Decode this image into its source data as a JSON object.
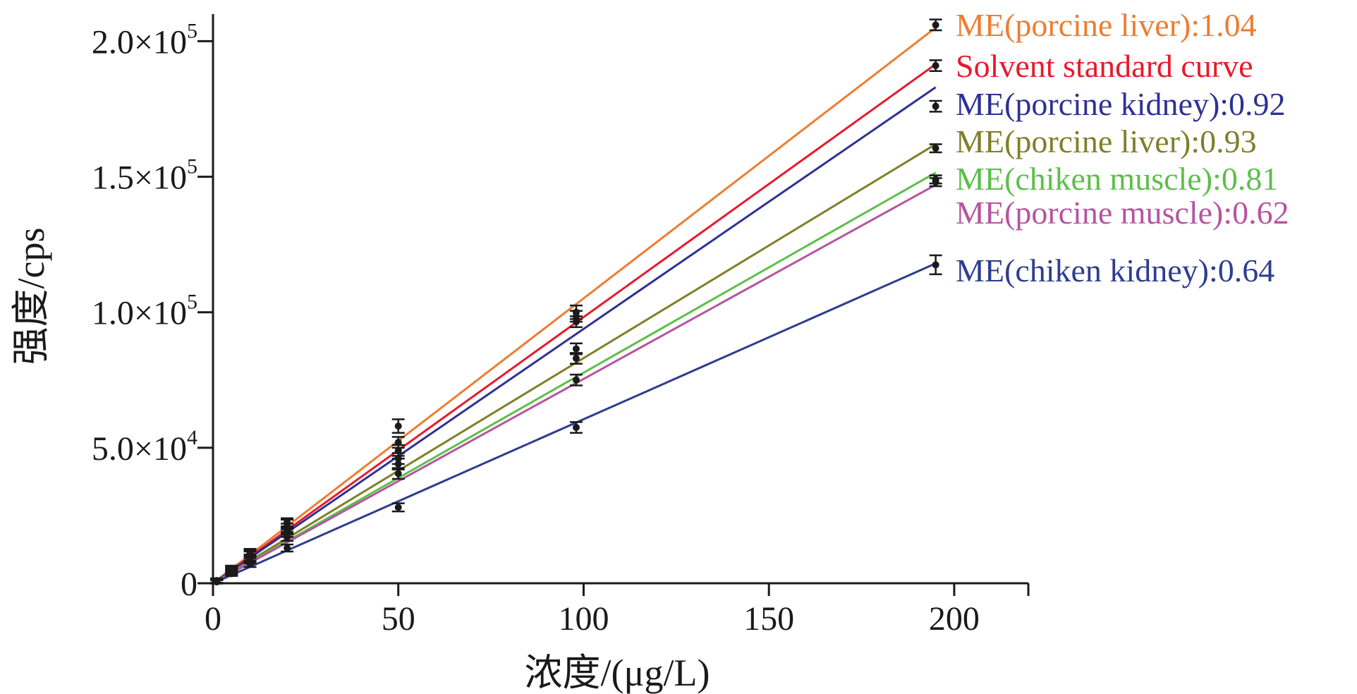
{
  "chart_data": {
    "type": "line",
    "xlabel": "浓度/(μg/L)",
    "ylabel": "强度/cps",
    "xlim": [
      0,
      220
    ],
    "ylim": [
      0,
      210000
    ],
    "xticks": [
      0,
      50,
      100,
      150,
      200
    ],
    "xtick_labels": [
      "0",
      "50",
      "100",
      "150",
      "200"
    ],
    "yticks": [
      0,
      50000,
      100000,
      150000,
      200000
    ],
    "ytick_labels": [
      {
        "main": "0",
        "exp": ""
      },
      {
        "main": "5.0×10",
        "exp": "4"
      },
      {
        "main": "1.0×10",
        "exp": "5"
      },
      {
        "main": "1.5×10",
        "exp": "5"
      },
      {
        "main": "2.0×10",
        "exp": "5"
      }
    ],
    "grid": false,
    "legend_placement": "right, beside line ends",
    "series": [
      {
        "name": "ME(porcine liver):1.04",
        "color": "#ED7D31",
        "x": [
          1,
          5,
          10,
          20,
          50,
          98,
          195
        ],
        "y": [
          1000,
          5500,
          11500,
          22500,
          58000,
          100000,
          206000
        ],
        "err": [
          800,
          1000,
          1200,
          1500,
          2500,
          2500,
          2000
        ],
        "fit": [
          0,
          205000
        ]
      },
      {
        "name": "Solvent standard curve",
        "color": "#E8192C",
        "x": [
          1,
          5,
          10,
          20,
          50,
          98,
          195
        ],
        "y": [
          1000,
          5300,
          11000,
          22000,
          52000,
          98500,
          191000
        ],
        "err": [
          800,
          1000,
          1200,
          1500,
          2000,
          2000,
          2000
        ],
        "fit": [
          0,
          191500
        ]
      },
      {
        "name": "ME(porcine kidney):0.92",
        "color": "#2E3192",
        "x": [
          1,
          5,
          10,
          20,
          50,
          98,
          195
        ],
        "y": [
          900,
          5000,
          10500,
          20500,
          49000,
          96500,
          176000
        ],
        "err": [
          800,
          1000,
          1200,
          1500,
          2000,
          2000,
          2000
        ],
        "fit": [
          0,
          183000
        ]
      },
      {
        "name": "ME(porcine liver):0.93",
        "color": "#7F7F28",
        "x": [
          1,
          5,
          10,
          20,
          50,
          98,
          195
        ],
        "y": [
          800,
          4700,
          9500,
          19500,
          46000,
          86500,
          160500
        ],
        "err": [
          700,
          900,
          1100,
          1400,
          2000,
          2000,
          1500
        ],
        "fit": [
          0,
          162000
        ]
      },
      {
        "name": "ME(chiken muscle):0.81",
        "color": "#5CBF4A",
        "x": [
          1,
          5,
          10,
          20,
          50,
          98,
          195
        ],
        "y": [
          700,
          4300,
          9000,
          18500,
          44000,
          83000,
          149000
        ],
        "err": [
          700,
          900,
          1100,
          1400,
          2000,
          2000,
          1500
        ],
        "fit": [
          0,
          151500
        ]
      },
      {
        "name": "ME(porcine muscle):0.62",
        "color": "#B5559F",
        "x": [
          1,
          5,
          10,
          20,
          50,
          98,
          195
        ],
        "y": [
          600,
          4000,
          8500,
          17000,
          40500,
          75000,
          148000
        ],
        "err": [
          700,
          900,
          1100,
          1400,
          2000,
          2000,
          1500
        ],
        "fit": [
          0,
          147000
        ]
      },
      {
        "name": "ME(chiken kidney):0.64",
        "color": "#2E3D8F",
        "x": [
          1,
          5,
          10,
          20,
          50,
          98,
          195
        ],
        "y": [
          500,
          3500,
          7000,
          13000,
          28000,
          57500,
          117500
        ],
        "err": [
          600,
          800,
          1000,
          1300,
          1500,
          2000,
          3500
        ],
        "fit": [
          0,
          118000
        ]
      }
    ]
  }
}
